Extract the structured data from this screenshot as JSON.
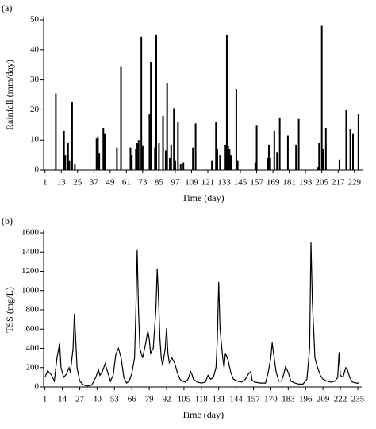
{
  "chart_data": [
    {
      "type": "bar",
      "title": "(a)",
      "xlabel": "Time (day)",
      "ylabel": "Rainfall (mm/day)",
      "color": "#000000",
      "x": [
        9,
        15,
        16,
        18,
        19,
        21,
        23,
        39,
        40,
        41,
        44,
        45,
        54,
        57,
        64,
        65,
        68,
        69,
        70,
        72,
        73,
        78,
        79,
        82,
        83,
        85,
        88,
        90,
        91,
        93,
        94,
        96,
        97,
        99,
        101,
        103,
        110,
        112,
        124,
        127,
        128,
        130,
        134,
        135,
        136,
        137,
        138,
        142,
        143,
        156,
        157,
        165,
        166,
        167,
        170,
        172,
        174,
        180,
        186,
        188,
        202,
        203,
        205,
        206,
        208,
        218,
        223,
        226,
        228,
        232
      ],
      "values": [
        25.5,
        13,
        5,
        9,
        3,
        22.5,
        2,
        10.5,
        11,
        5.5,
        14,
        12,
        7.5,
        34.5,
        7.5,
        5,
        7,
        9,
        10,
        44.5,
        8,
        18.5,
        36,
        7.5,
        45,
        9,
        18,
        6.5,
        29,
        4,
        8.5,
        20.5,
        3,
        16,
        2,
        2.5,
        7.5,
        15.5,
        3,
        16,
        7,
        5,
        8.5,
        45,
        8,
        7,
        5,
        27,
        3,
        2.5,
        15,
        4,
        8.5,
        4,
        13,
        6,
        17.5,
        11.5,
        8.5,
        17,
        1,
        9,
        48,
        7,
        14,
        3.5,
        20,
        13.5,
        12,
        18.5
      ],
      "xlim": [
        0,
        235
      ],
      "xticks": [
        1,
        13,
        25,
        37,
        49,
        61,
        73,
        85,
        97,
        109,
        121,
        133,
        145,
        157,
        169,
        181,
        193,
        205,
        217,
        229
      ],
      "ylim": [
        0,
        50
      ],
      "yticks": [
        0,
        10,
        20,
        30,
        40,
        50
      ]
    },
    {
      "type": "line",
      "title": "(b)",
      "xlabel": "Time (day)",
      "ylabel": "TSS (mg/L)",
      "color": "#000000",
      "x": [
        1,
        3,
        6,
        8,
        10,
        12,
        13,
        15,
        17,
        19,
        20,
        22,
        23,
        24,
        25,
        27,
        30,
        33,
        36,
        39,
        41,
        42,
        44,
        46,
        48,
        50,
        52,
        54,
        56,
        58,
        60,
        62,
        64,
        66,
        68,
        69,
        70,
        71,
        72,
        74,
        76,
        78,
        79,
        80,
        82,
        84,
        85,
        86,
        87,
        88,
        89,
        91,
        92,
        93,
        94,
        96,
        98,
        100,
        102,
        104,
        106,
        108,
        110,
        111,
        112,
        115,
        118,
        121,
        123,
        125,
        127,
        129,
        130,
        131,
        132,
        134,
        135,
        136,
        138,
        140,
        142,
        145,
        148,
        151,
        153,
        155,
        156,
        158,
        162,
        166,
        168,
        170,
        171,
        172,
        174,
        176,
        178,
        180,
        181,
        183,
        185,
        188,
        191,
        194,
        197,
        199,
        200,
        201,
        203,
        205,
        207,
        209,
        212,
        215,
        218,
        220,
        221,
        222,
        224,
        226,
        227,
        229,
        231,
        234,
        236
      ],
      "values": [
        100,
        170,
        120,
        60,
        300,
        450,
        200,
        100,
        130,
        200,
        150,
        400,
        760,
        500,
        200,
        60,
        20,
        10,
        20,
        100,
        180,
        120,
        160,
        240,
        150,
        60,
        120,
        340,
        400,
        300,
        100,
        40,
        60,
        140,
        300,
        800,
        1420,
        800,
        400,
        300,
        430,
        580,
        500,
        350,
        400,
        800,
        1230,
        900,
        500,
        300,
        220,
        400,
        610,
        350,
        250,
        300,
        250,
        150,
        80,
        60,
        50,
        80,
        160,
        130,
        80,
        50,
        40,
        50,
        120,
        80,
        100,
        200,
        500,
        1090,
        600,
        300,
        200,
        350,
        280,
        150,
        80,
        60,
        50,
        80,
        130,
        160,
        70,
        50,
        40,
        40,
        150,
        300,
        460,
        350,
        150,
        60,
        60,
        150,
        210,
        150,
        60,
        40,
        30,
        30,
        80,
        400,
        1500,
        900,
        300,
        200,
        120,
        80,
        60,
        50,
        60,
        100,
        360,
        120,
        100,
        200,
        190,
        100,
        50,
        40,
        40
      ],
      "xlim": [
        0,
        238
      ],
      "xticks": [
        1,
        14,
        27,
        40,
        53,
        66,
        79,
        92,
        105,
        118,
        131,
        144,
        157,
        170,
        183,
        196,
        209,
        222,
        235
      ],
      "ylim": [
        0,
        1600
      ],
      "yticks": [
        0,
        200,
        400,
        600,
        800,
        1000,
        1200,
        1400,
        1600
      ]
    }
  ]
}
